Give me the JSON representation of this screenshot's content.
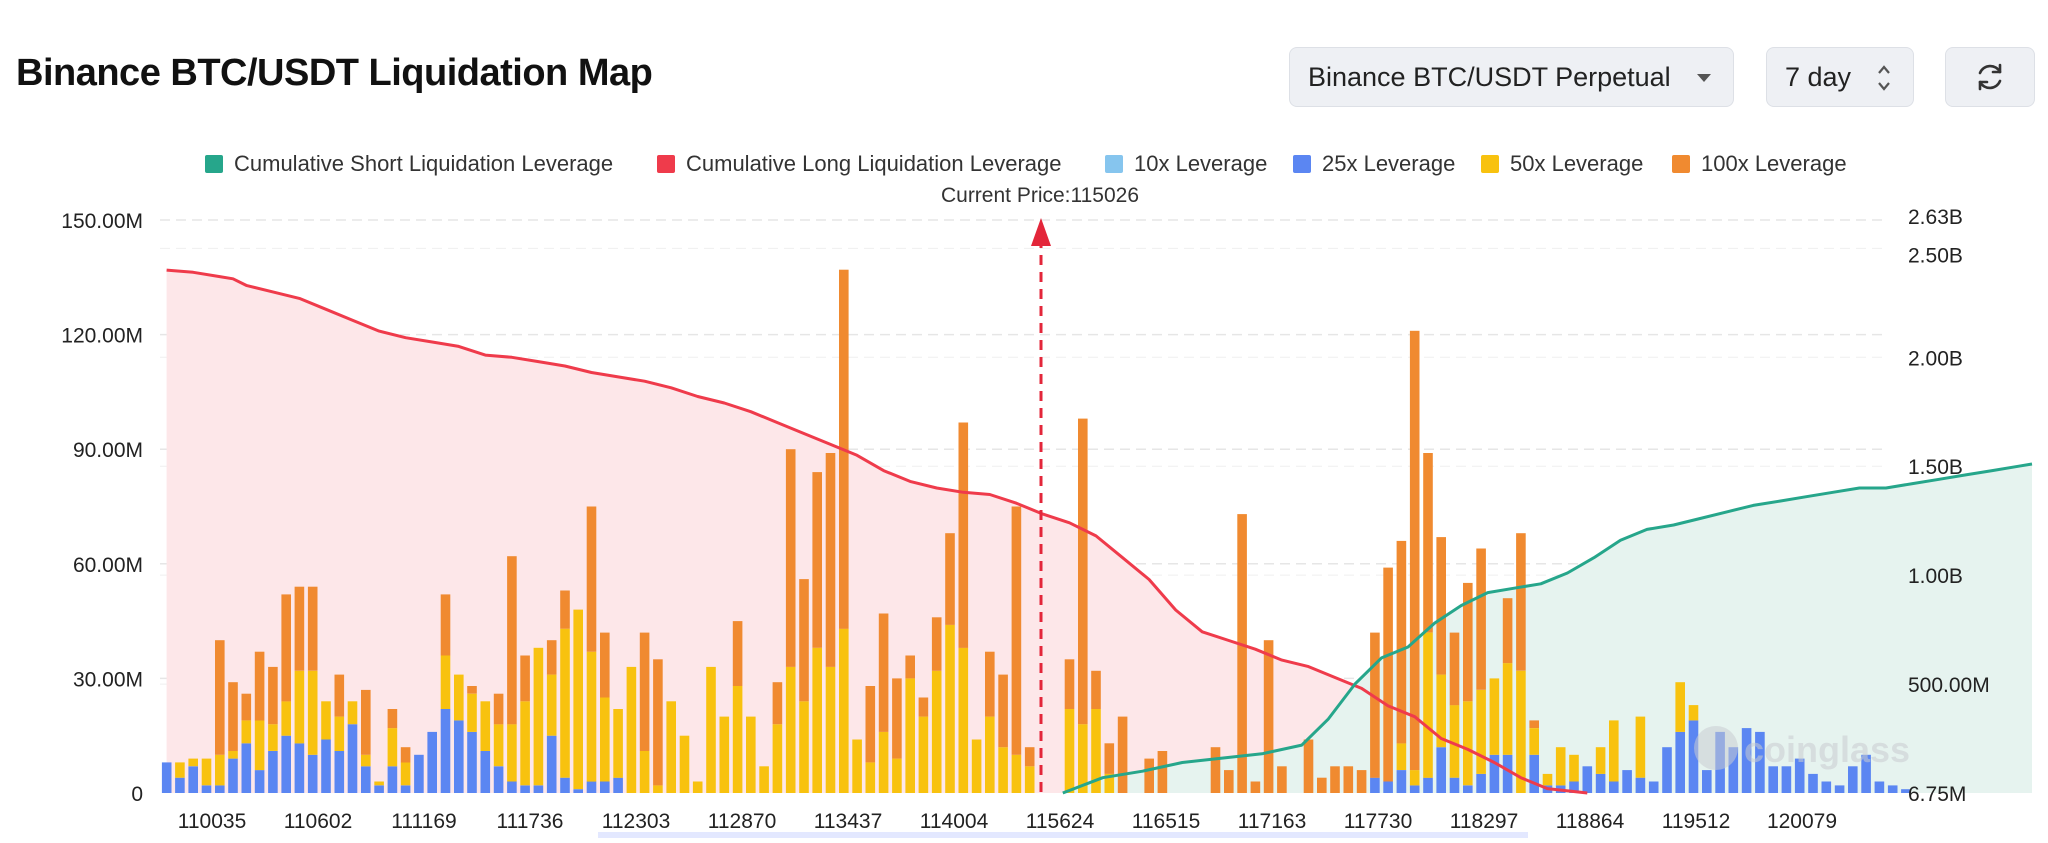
{
  "header": {
    "title": "Binance BTC/USDT Liquidation Map",
    "exchange_select": "Binance BTC/USDT Perpetual",
    "period_select": "7 day",
    "refresh_icon": "refresh-icon"
  },
  "watermark": "coinglass",
  "chart_data": {
    "type": "bar",
    "current_price_label": "Current Price:115026",
    "current_price": 115026,
    "legend": [
      {
        "name": "Cumulative Short Liquidation Leverage",
        "color": "#26a68b"
      },
      {
        "name": "Cumulative Long Liquidation Leverage",
        "color": "#ef3b4b"
      },
      {
        "name": "10x Leverage",
        "color": "#86c5ee"
      },
      {
        "name": "25x Leverage",
        "color": "#5b86f2"
      },
      {
        "name": "50x Leverage",
        "color": "#f8c20f"
      },
      {
        "name": "100x Leverage",
        "color": "#f08a30"
      }
    ],
    "y_left_ticks": [
      "0",
      "30.00M",
      "60.00M",
      "90.00M",
      "120.00M",
      "150.00M"
    ],
    "y_left_range": [
      0,
      150
    ],
    "y_right_ticks": [
      {
        "label": "6.75M",
        "value": 0
      },
      {
        "label": "500.00M",
        "value": 0.5
      },
      {
        "label": "1.00B",
        "value": 1.0
      },
      {
        "label": "1.50B",
        "value": 1.5
      },
      {
        "label": "2.00B",
        "value": 2.0
      },
      {
        "label": "2.50B",
        "value": 2.5
      },
      {
        "label": "2.63B",
        "value": 2.63
      }
    ],
    "y_right_range": [
      0,
      2.63
    ],
    "x_tick_labels": [
      {
        "label": "110035",
        "index": 1
      },
      {
        "label": "110602",
        "index": 5
      },
      {
        "label": "111169",
        "index": 9
      },
      {
        "label": "111736",
        "index": 13
      },
      {
        "label": "112303",
        "index": 17
      },
      {
        "label": "112870",
        "index": 21
      },
      {
        "label": "113437",
        "index": 25
      },
      {
        "label": "114004",
        "index": 29
      },
      {
        "label": "115624",
        "index": 33
      },
      {
        "label": "116515",
        "index": 37
      },
      {
        "label": "117163",
        "index": 41
      },
      {
        "label": "117730",
        "index": 45
      },
      {
        "label": "118297",
        "index": 49
      },
      {
        "label": "118864",
        "index": 53
      },
      {
        "label": "119512",
        "index": 57
      },
      {
        "label": "120079",
        "index": 61
      }
    ],
    "bar_slots": 130,
    "current_price_slot": 66,
    "bars_units": "millions USD, stacked [25x, 50x, 100x]",
    "bars": [
      [
        8,
        0,
        0
      ],
      [
        4,
        4,
        0
      ],
      [
        7,
        2,
        0
      ],
      [
        2,
        7,
        0
      ],
      [
        2,
        8,
        30
      ],
      [
        9,
        2,
        18
      ],
      [
        13,
        6,
        7
      ],
      [
        6,
        13,
        18
      ],
      [
        11,
        7,
        15
      ],
      [
        15,
        9,
        28
      ],
      [
        13,
        19,
        22
      ],
      [
        10,
        22,
        22
      ],
      [
        14,
        10,
        0
      ],
      [
        11,
        9,
        11
      ],
      [
        18,
        6,
        0
      ],
      [
        7,
        3,
        17
      ],
      [
        2,
        1,
        0
      ],
      [
        7,
        10,
        5
      ],
      [
        2,
        6,
        4
      ],
      [
        10,
        0,
        0
      ],
      [
        16,
        0,
        0
      ],
      [
        22,
        14,
        16
      ],
      [
        19,
        12,
        0
      ],
      [
        16,
        10,
        2
      ],
      [
        11,
        13,
        0
      ],
      [
        7,
        11,
        8
      ],
      [
        3,
        15,
        44
      ],
      [
        2,
        22,
        12
      ],
      [
        2,
        36,
        0
      ],
      [
        15,
        16,
        9
      ],
      [
        4,
        39,
        10
      ],
      [
        1,
        47,
        0
      ],
      [
        3,
        34,
        38
      ],
      [
        3,
        22,
        17
      ],
      [
        4,
        18,
        0
      ],
      [
        0,
        33,
        0
      ],
      [
        0,
        11,
        31
      ],
      [
        0,
        2,
        33
      ],
      [
        0,
        24,
        0
      ],
      [
        0,
        15,
        0
      ],
      [
        0,
        3,
        0
      ],
      [
        0,
        33,
        0
      ],
      [
        0,
        20,
        0
      ],
      [
        0,
        28,
        17
      ],
      [
        0,
        20,
        0
      ],
      [
        0,
        7,
        0
      ],
      [
        0,
        18,
        11
      ],
      [
        0,
        33,
        57
      ],
      [
        0,
        24,
        32
      ],
      [
        0,
        38,
        46
      ],
      [
        0,
        33,
        56
      ],
      [
        0,
        43,
        94
      ],
      [
        0,
        14,
        0
      ],
      [
        0,
        8,
        20
      ],
      [
        0,
        16,
        31
      ],
      [
        0,
        9,
        21
      ],
      [
        0,
        30,
        6
      ],
      [
        0,
        20,
        5
      ],
      [
        0,
        32,
        14
      ],
      [
        0,
        44,
        24
      ],
      [
        0,
        38,
        59
      ],
      [
        0,
        14,
        0
      ],
      [
        0,
        20,
        17
      ],
      [
        0,
        12,
        19
      ],
      [
        0,
        10,
        65
      ],
      [
        0,
        7,
        5
      ],
      [
        0,
        22,
        13
      ],
      [
        0,
        18,
        80
      ],
      [
        0,
        22,
        10
      ],
      [
        0,
        5,
        8
      ],
      [
        0,
        0,
        20
      ],
      [
        0,
        0,
        0
      ],
      [
        0,
        0,
        9
      ],
      [
        0,
        0,
        11
      ],
      [
        0,
        0,
        0
      ],
      [
        0,
        0,
        0
      ],
      [
        0,
        0,
        0
      ],
      [
        0,
        0,
        12
      ],
      [
        0,
        0,
        6
      ],
      [
        0,
        0,
        73
      ],
      [
        0,
        0,
        3
      ],
      [
        0,
        0,
        40
      ],
      [
        0,
        0,
        7
      ],
      [
        0,
        0,
        0
      ],
      [
        0,
        0,
        14
      ],
      [
        0,
        0,
        4
      ],
      [
        0,
        0,
        7
      ],
      [
        0,
        0,
        7
      ],
      [
        0,
        0,
        6
      ],
      [
        4,
        0,
        38
      ],
      [
        3,
        0,
        56
      ],
      [
        6,
        7,
        53
      ],
      [
        2,
        4,
        115
      ],
      [
        4,
        38,
        47
      ],
      [
        12,
        19,
        36
      ],
      [
        4,
        19,
        19
      ],
      [
        2,
        22,
        31
      ],
      [
        5,
        22,
        37
      ],
      [
        10,
        20,
        0
      ],
      [
        10,
        24,
        17
      ],
      [
        0,
        32,
        36
      ],
      [
        10,
        7,
        2
      ],
      [
        2,
        3,
        0
      ],
      [
        2,
        10,
        0
      ],
      [
        3,
        7,
        0
      ],
      [
        7,
        0,
        0
      ],
      [
        5,
        7,
        0
      ],
      [
        3,
        16,
        0
      ],
      [
        6,
        0,
        0
      ],
      [
        4,
        16,
        0
      ],
      [
        3,
        0,
        0
      ],
      [
        12,
        0,
        0
      ],
      [
        16,
        13,
        0
      ],
      [
        19,
        4,
        0
      ],
      [
        6,
        0,
        0
      ],
      [
        16,
        0,
        0
      ],
      [
        12,
        0,
        0
      ],
      [
        17,
        0,
        0
      ],
      [
        16,
        0,
        0
      ],
      [
        7,
        0,
        0
      ],
      [
        7,
        0,
        0
      ],
      [
        9,
        0,
        0
      ],
      [
        5,
        0,
        0
      ],
      [
        3,
        0,
        0
      ],
      [
        2,
        0,
        0
      ],
      [
        7,
        0,
        0
      ],
      [
        10,
        0,
        0
      ],
      [
        3,
        0,
        0
      ],
      [
        2,
        0,
        0
      ],
      [
        1,
        0,
        0
      ]
    ],
    "cumulative_long_billions": [
      [
        0,
        2.4
      ],
      [
        2,
        2.39
      ],
      [
        4,
        2.37
      ],
      [
        5,
        2.36
      ],
      [
        6,
        2.33
      ],
      [
        8,
        2.3
      ],
      [
        10,
        2.27
      ],
      [
        12,
        2.22
      ],
      [
        14,
        2.17
      ],
      [
        16,
        2.12
      ],
      [
        18,
        2.09
      ],
      [
        20,
        2.07
      ],
      [
        22,
        2.05
      ],
      [
        24,
        2.01
      ],
      [
        26,
        2.0
      ],
      [
        28,
        1.98
      ],
      [
        30,
        1.96
      ],
      [
        32,
        1.93
      ],
      [
        34,
        1.91
      ],
      [
        36,
        1.89
      ],
      [
        38,
        1.86
      ],
      [
        40,
        1.82
      ],
      [
        42,
        1.79
      ],
      [
        44,
        1.75
      ],
      [
        46,
        1.7
      ],
      [
        48,
        1.65
      ],
      [
        50,
        1.6
      ],
      [
        52,
        1.55
      ],
      [
        54,
        1.48
      ],
      [
        56,
        1.43
      ],
      [
        58,
        1.4
      ],
      [
        60,
        1.38
      ],
      [
        62,
        1.37
      ],
      [
        64,
        1.33
      ],
      [
        66,
        1.28
      ],
      [
        68,
        1.24
      ],
      [
        70,
        1.18
      ],
      [
        72,
        1.08
      ],
      [
        74,
        0.98
      ],
      [
        76,
        0.84
      ],
      [
        78,
        0.74
      ],
      [
        80,
        0.7
      ],
      [
        82,
        0.66
      ],
      [
        84,
        0.61
      ],
      [
        86,
        0.58
      ],
      [
        88,
        0.53
      ],
      [
        90,
        0.48
      ],
      [
        92,
        0.4
      ],
      [
        94,
        0.35
      ],
      [
        96,
        0.25
      ],
      [
        98,
        0.2
      ],
      [
        100,
        0.14
      ],
      [
        102,
        0.07
      ],
      [
        104,
        0.02
      ],
      [
        107,
        0.0
      ]
    ],
    "cumulative_short_billions": [
      [
        0,
        0.0
      ],
      [
        3,
        0.07
      ],
      [
        6,
        0.1
      ],
      [
        9,
        0.14
      ],
      [
        12,
        0.16
      ],
      [
        15,
        0.18
      ],
      [
        18,
        0.22
      ],
      [
        20,
        0.34
      ],
      [
        22,
        0.5
      ],
      [
        24,
        0.62
      ],
      [
        26,
        0.67
      ],
      [
        28,
        0.78
      ],
      [
        30,
        0.86
      ],
      [
        32,
        0.92
      ],
      [
        34,
        0.94
      ],
      [
        36,
        0.96
      ],
      [
        38,
        1.01
      ],
      [
        40,
        1.08
      ],
      [
        42,
        1.16
      ],
      [
        44,
        1.21
      ],
      [
        46,
        1.23
      ],
      [
        48,
        1.26
      ],
      [
        50,
        1.29
      ],
      [
        52,
        1.32
      ],
      [
        54,
        1.34
      ],
      [
        56,
        1.36
      ],
      [
        58,
        1.38
      ],
      [
        60,
        1.4
      ],
      [
        62,
        1.4
      ],
      [
        64,
        1.42
      ],
      [
        66,
        1.44
      ],
      [
        68,
        1.46
      ],
      [
        70,
        1.48
      ],
      [
        72,
        1.5
      ],
      [
        73,
        1.51
      ]
    ]
  }
}
